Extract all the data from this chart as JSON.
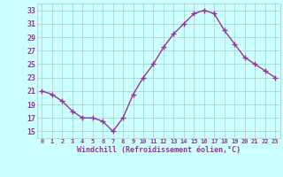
{
  "hours": [
    0,
    1,
    2,
    3,
    4,
    5,
    6,
    7,
    8,
    9,
    10,
    11,
    12,
    13,
    14,
    15,
    16,
    17,
    18,
    19,
    20,
    21,
    22,
    23
  ],
  "values": [
    21.0,
    20.5,
    19.5,
    18.0,
    17.0,
    17.0,
    16.5,
    15.0,
    17.0,
    20.5,
    23.0,
    25.0,
    27.5,
    29.5,
    31.0,
    32.5,
    33.0,
    32.5,
    30.0,
    28.0,
    26.0,
    25.0,
    24.0,
    23.0
  ],
  "line_color": "#993399",
  "marker": "+",
  "marker_size": 4,
  "bg_color": "#ccffff",
  "grid_color": "#aacccc",
  "xlabel": "Windchill (Refroidissement éolien,°C)",
  "xlabel_color": "#993399",
  "tick_color": "#993399",
  "ylim": [
    14,
    34
  ],
  "yticks": [
    15,
    17,
    19,
    21,
    23,
    25,
    27,
    29,
    31,
    33
  ],
  "line_width": 1.0
}
